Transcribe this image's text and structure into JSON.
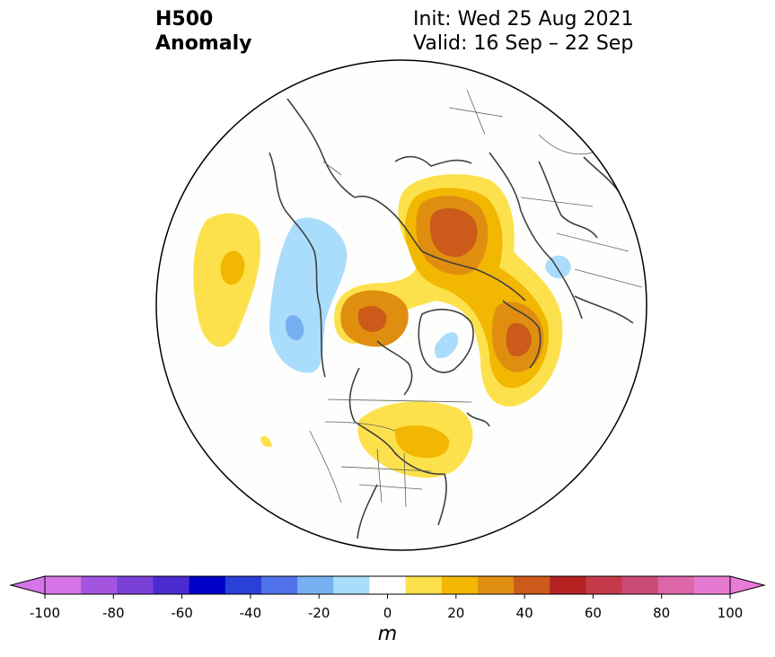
{
  "title": {
    "left_line1": "H500",
    "left_line2": "Anomaly",
    "init": "Init: Wed 25 Aug 2021",
    "valid": "Valid: 16 Sep – 22 Sep"
  },
  "colorbar": {
    "unit": "m",
    "ticks": [
      "-100",
      "-80",
      "-60",
      "-40",
      "-20",
      "0",
      "20",
      "40",
      "60",
      "80",
      "100"
    ],
    "levels": [
      -100,
      -90,
      -80,
      -70,
      -60,
      -50,
      -40,
      -30,
      -20,
      -10,
      10,
      20,
      30,
      40,
      50,
      60,
      70,
      80,
      90,
      100
    ],
    "colors": [
      "#d675e8",
      "#a455e0",
      "#7a40d8",
      "#4a2bd0",
      "#0000c8",
      "#2a40d8",
      "#4f72e8",
      "#77b0f2",
      "#aadcfc",
      "#ffffff",
      "#fde14c",
      "#f2b700",
      "#e08e10",
      "#cc5a1a",
      "#b42222",
      "#c43a4a",
      "#cc4a78",
      "#dc66a8",
      "#e47ad0"
    ],
    "extend_low": "#d675e8",
    "extend_high": "#e87ad8"
  },
  "map": {
    "projection": "North polar stereographic",
    "variable": "500 hPa geopotential height anomaly"
  }
}
